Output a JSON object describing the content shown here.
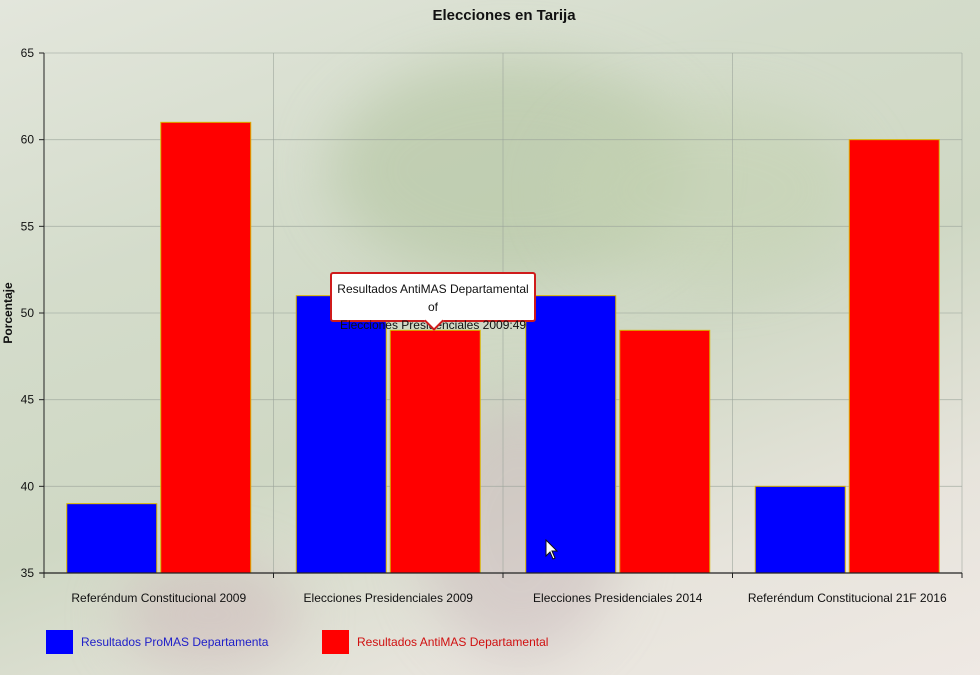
{
  "chart_data": {
    "type": "bar",
    "title": "Elecciones en Tarija",
    "ylabel": "Porcentaje",
    "xlabel": "",
    "ylim": [
      35,
      65
    ],
    "yticks": [
      35,
      40,
      45,
      50,
      55,
      60,
      65
    ],
    "categories": [
      "Referéndum Constitucional 2009",
      "Elecciones Presidenciales 2009",
      "Elecciones Presidenciales 2014",
      "Referéndum Constitucional 21F 2016"
    ],
    "series": [
      {
        "name": "Resultados ProMAS Departamenta",
        "color": "#0000ff",
        "values": [
          39,
          51,
          51,
          40
        ]
      },
      {
        "name": "Resultados AntiMAS Departamental",
        "color": "#ff0000",
        "values": [
          61,
          49,
          49,
          60
        ]
      }
    ],
    "grid": true,
    "legend_position": "bottom-left"
  },
  "tooltip": {
    "line1": "Resultados AntiMAS Departamental of",
    "line2": "Elecciones Presidenciales 2009:49",
    "border_color": "#cf1b1b"
  },
  "legend_colors": {
    "promas_text": "#2020c8",
    "antimas_text": "#d01010"
  }
}
